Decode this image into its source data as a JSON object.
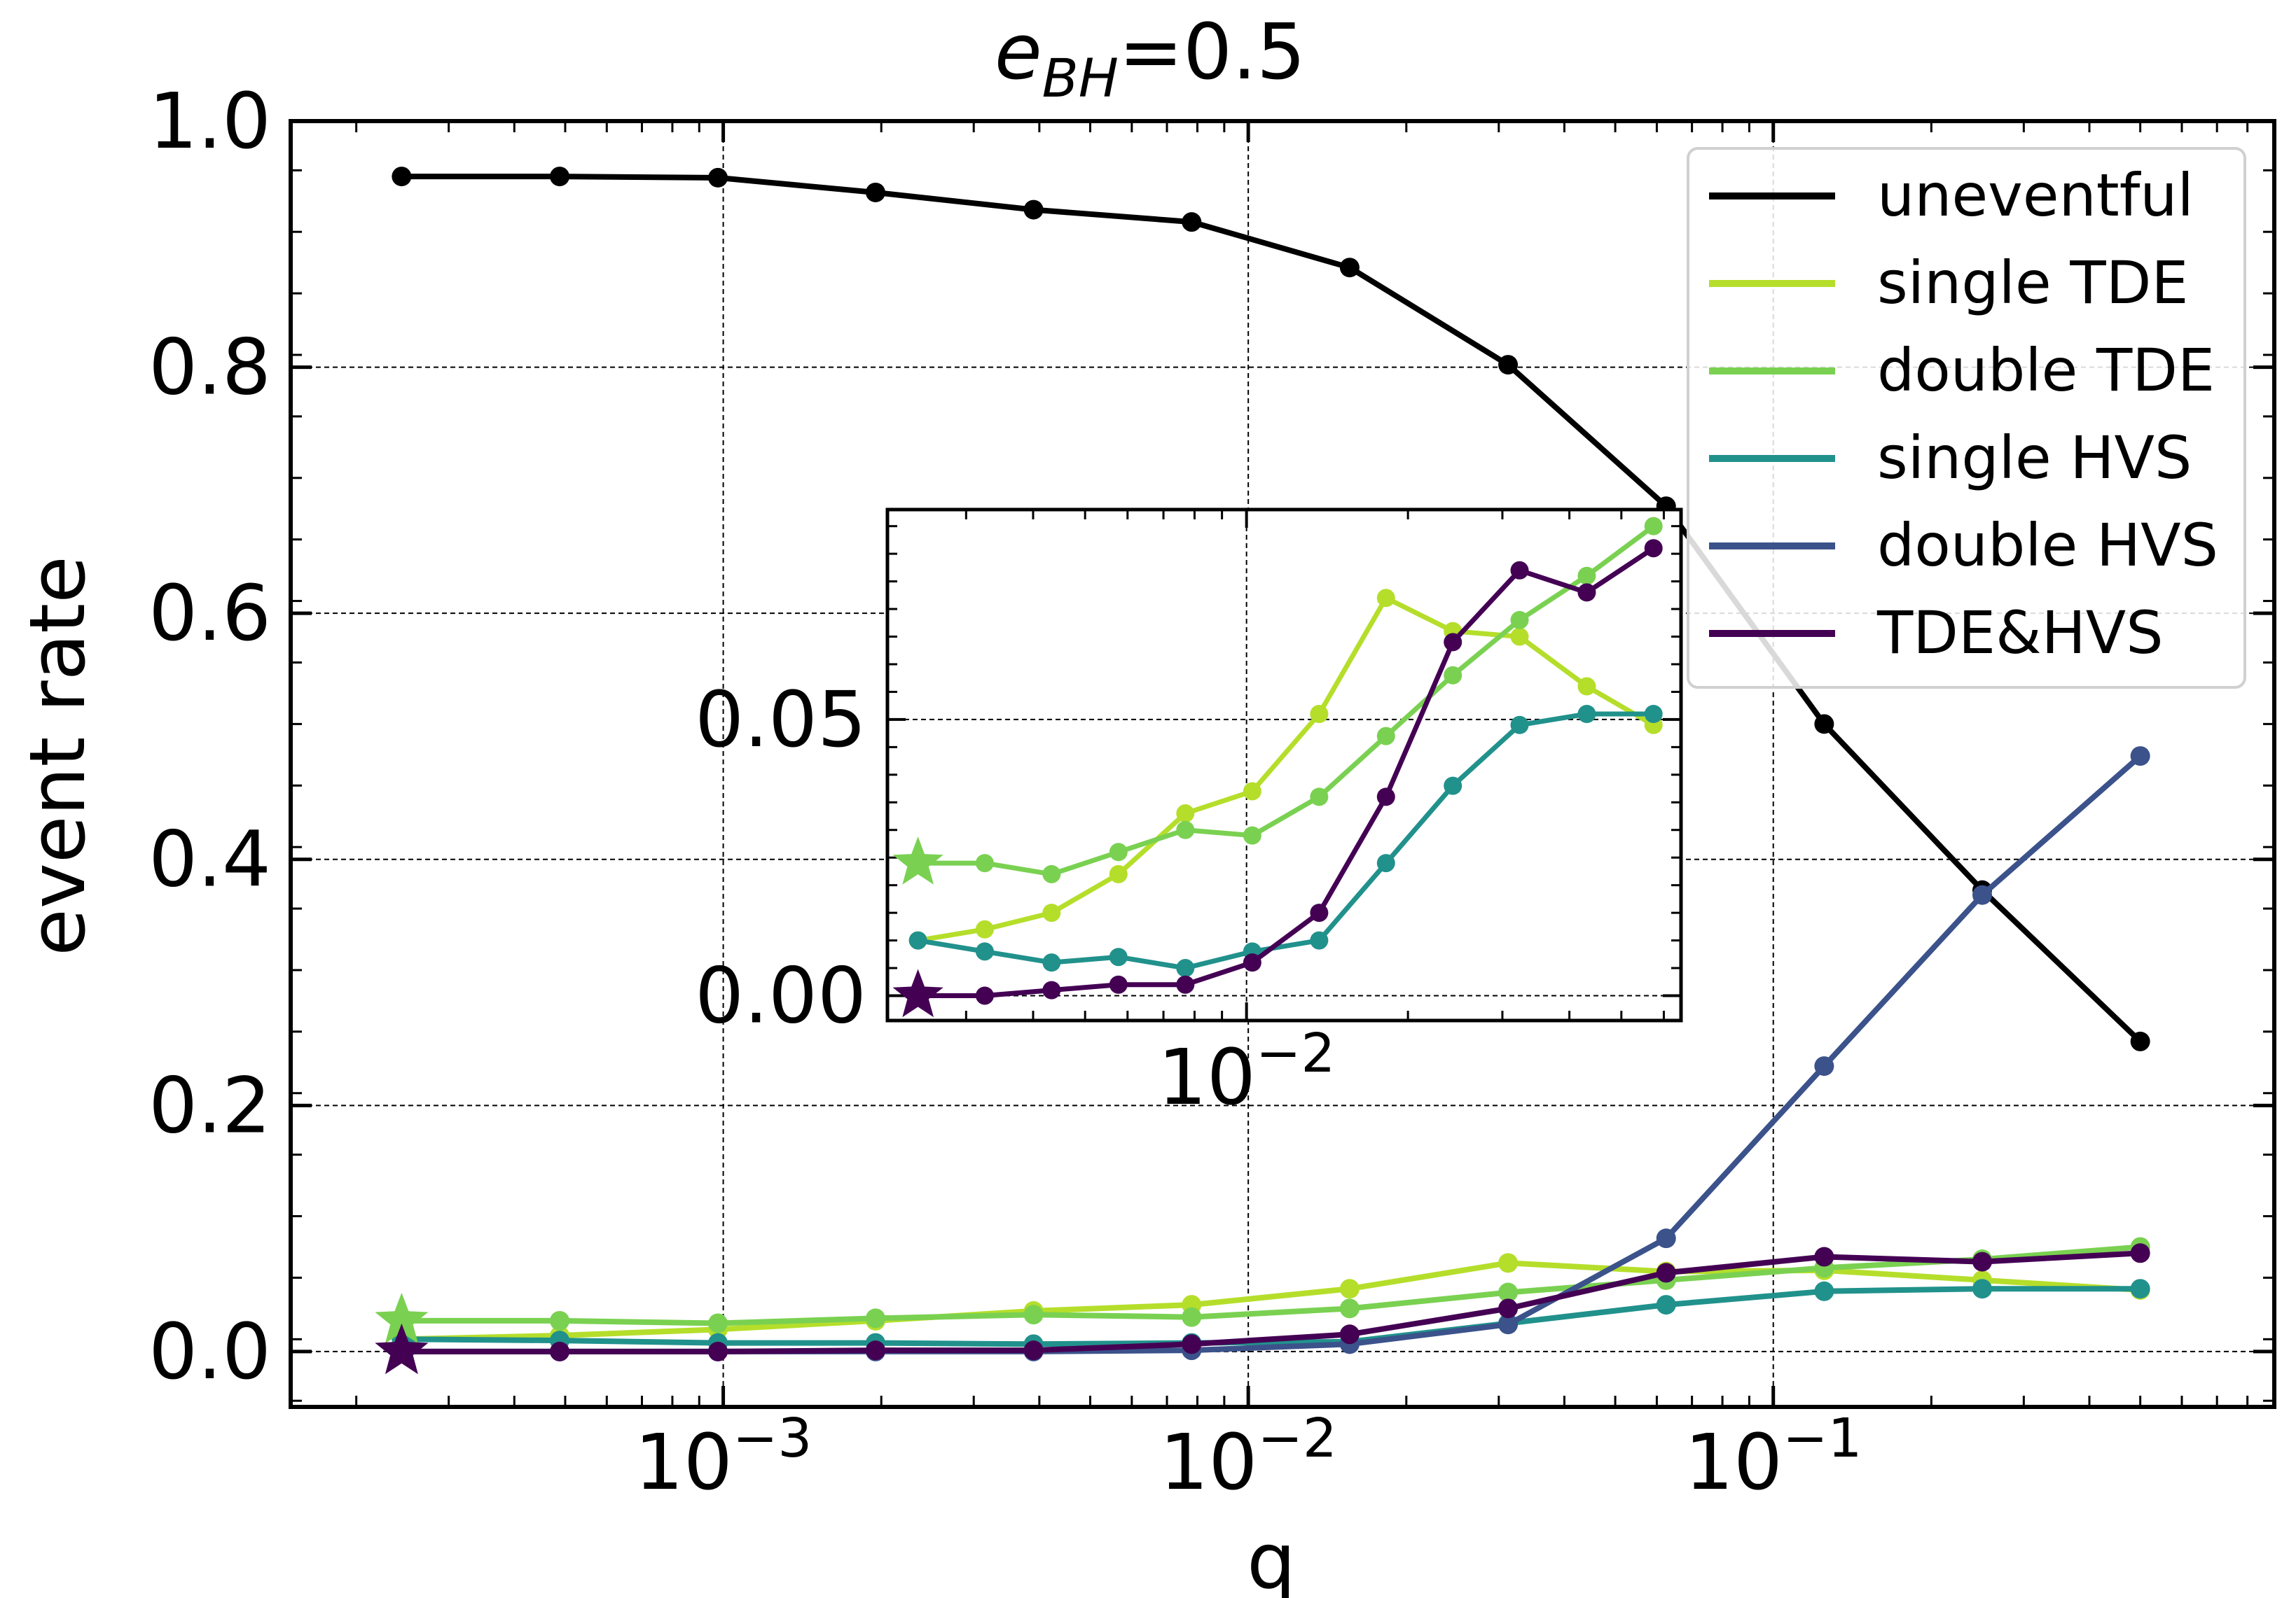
{
  "chart_data": {
    "type": "line",
    "title_base": "e",
    "title_sub": "BH",
    "title_rest": "=0.5",
    "xlabel": "q",
    "ylabel": "event rate",
    "xscale": "log",
    "xlim": [
      0.00015,
      0.9
    ],
    "ylim": [
      -0.045,
      1.0
    ],
    "yticks": [
      0.0,
      0.2,
      0.4,
      0.6,
      0.8,
      1.0
    ],
    "ytick_labels": [
      "0.0",
      "0.2",
      "0.4",
      "0.6",
      "0.8",
      "1.0"
    ],
    "xticks": [
      {
        "base": "10",
        "exp": "−3",
        "value": 0.001
      },
      {
        "base": "10",
        "exp": "−2",
        "value": 0.01
      },
      {
        "base": "10",
        "exp": "−1",
        "value": 0.1
      }
    ],
    "grid": true,
    "legend_position": "top-right",
    "x": [
      0.000244,
      0.000488,
      0.000977,
      0.00195,
      0.0039,
      0.0078,
      0.0156,
      0.03125,
      0.0625,
      0.125,
      0.25,
      0.5
    ],
    "series": [
      {
        "name": "uneventful",
        "color": "#000000",
        "values": [
          0.955,
          0.955,
          0.954,
          0.942,
          0.928,
          0.918,
          0.881,
          0.802,
          0.687,
          0.51,
          0.375,
          0.252
        ]
      },
      {
        "name": "single TDE",
        "color": "#b5de2b",
        "values": [
          0.01,
          0.013,
          0.018,
          0.025,
          0.033,
          0.038,
          0.051,
          0.072,
          0.065,
          0.066,
          0.058,
          0.05
        ]
      },
      {
        "name": "double TDE",
        "color": "#7ad151",
        "values": [
          0.025,
          0.025,
          0.023,
          0.027,
          0.03,
          0.028,
          0.035,
          0.048,
          0.058,
          0.068,
          0.075,
          0.085
        ]
      },
      {
        "name": "single HVS",
        "color": "#21918c",
        "values": [
          0.01,
          0.009,
          0.007,
          0.007,
          0.006,
          0.007,
          0.008,
          0.023,
          0.038,
          0.049,
          0.051,
          0.051
        ]
      },
      {
        "name": "double HVS",
        "color": "#3b528b",
        "values": [
          0.0,
          0.0,
          0.0,
          0.0,
          0.0,
          0.001,
          0.006,
          0.022,
          0.092,
          0.232,
          0.371,
          0.484
        ]
      },
      {
        "name": "TDE&HVS",
        "color": "#440154",
        "values": [
          0.0,
          0.0,
          0.0,
          0.001,
          0.001,
          0.006,
          0.014,
          0.035,
          0.064,
          0.077,
          0.073,
          0.08
        ]
      }
    ],
    "start_markers": [
      {
        "series": "double TDE",
        "x": 0.000244,
        "y": 0.025
      },
      {
        "series": "TDE&HVS",
        "x": 0.000244,
        "y": 0.0
      }
    ],
    "inset": {
      "xscale": "log",
      "xlim": [
        0.00214,
        0.0646
      ],
      "ylim": [
        -0.0045,
        0.088
      ],
      "yticks": [
        0.0,
        0.05
      ],
      "ytick_labels": [
        "0.00",
        "0.05"
      ],
      "xtick": {
        "base": "10",
        "exp": "−2",
        "value": 0.01
      },
      "x": [
        0.00244,
        0.00325,
        0.00433,
        0.00577,
        0.00769,
        0.01025,
        0.01366,
        0.0182,
        0.02425,
        0.0323,
        0.0431,
        0.0574
      ],
      "series": [
        {
          "name": "single TDE",
          "color": "#b5de2b",
          "values": [
            0.01,
            0.012,
            0.015,
            0.022,
            0.033,
            0.037,
            0.051,
            0.072,
            0.066,
            0.065,
            0.056,
            0.049
          ]
        },
        {
          "name": "double TDE",
          "color": "#7ad151",
          "values": [
            0.024,
            0.024,
            0.022,
            0.026,
            0.03,
            0.029,
            0.036,
            0.047,
            0.058,
            0.068,
            0.076,
            0.085
          ]
        },
        {
          "name": "single HVS",
          "color": "#21918c",
          "values": [
            0.01,
            0.008,
            0.006,
            0.007,
            0.005,
            0.008,
            0.01,
            0.024,
            0.038,
            0.049,
            0.051,
            0.051
          ]
        },
        {
          "name": "TDE&HVS",
          "color": "#440154",
          "values": [
            0.0,
            0.0,
            0.001,
            0.002,
            0.002,
            0.006,
            0.015,
            0.036,
            0.064,
            0.077,
            0.073,
            0.081
          ]
        }
      ],
      "start_markers": [
        {
          "series": "double TDE",
          "x": 0.00244,
          "y": 0.024
        },
        {
          "series": "TDE&HVS",
          "x": 0.00244,
          "y": 0.0
        }
      ]
    }
  }
}
